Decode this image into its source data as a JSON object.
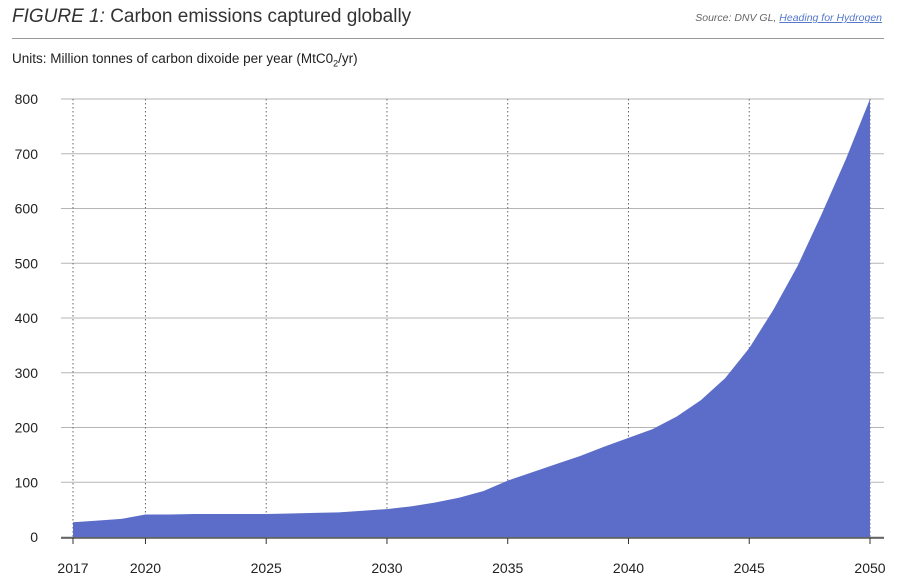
{
  "header": {
    "figure_label": "FIGURE 1:",
    "title": "Carbon emissions captured globally",
    "source_prefix": "Source: DNV GL, ",
    "source_link": "Heading for Hydrogen"
  },
  "units": {
    "text_before_sub": "Units: Million tonnes of carbon dixoide per year (MtC0",
    "subscript": "2",
    "text_after_sub": "/yr)"
  },
  "colors": {
    "area_fill": "#5b6dc8",
    "gridline": "#b5b5b5",
    "axis": "#333333"
  },
  "chart_data": {
    "type": "area",
    "title": "Carbon emissions captured globally",
    "ylabel": "Units: Million tonnes of carbon dixoide per year (MtC02/yr)",
    "xlabel": "",
    "xlim": [
      2017,
      2050
    ],
    "ylim": [
      0,
      800
    ],
    "x_ticks": [
      "2017",
      "2020",
      "2025",
      "2030",
      "2035",
      "2040",
      "2045",
      "2050"
    ],
    "y_ticks": [
      "0",
      "100",
      "200",
      "300",
      "400",
      "500",
      "600",
      "700",
      "800"
    ],
    "grid": {
      "horizontal": "solid",
      "vertical": "dotted"
    },
    "x": [
      2017,
      2018,
      2019,
      2020,
      2021,
      2022,
      2023,
      2024,
      2025,
      2026,
      2027,
      2028,
      2029,
      2030,
      2031,
      2032,
      2033,
      2034,
      2035,
      2036,
      2037,
      2038,
      2039,
      2040,
      2041,
      2042,
      2043,
      2044,
      2045,
      2046,
      2047,
      2048,
      2049,
      2050
    ],
    "values": [
      27,
      30,
      33,
      41,
      41,
      42,
      42,
      42,
      42,
      43,
      44,
      45,
      48,
      51,
      56,
      63,
      72,
      84,
      103,
      118,
      133,
      148,
      165,
      181,
      197,
      220,
      250,
      290,
      345,
      415,
      495,
      590,
      690,
      800
    ]
  }
}
